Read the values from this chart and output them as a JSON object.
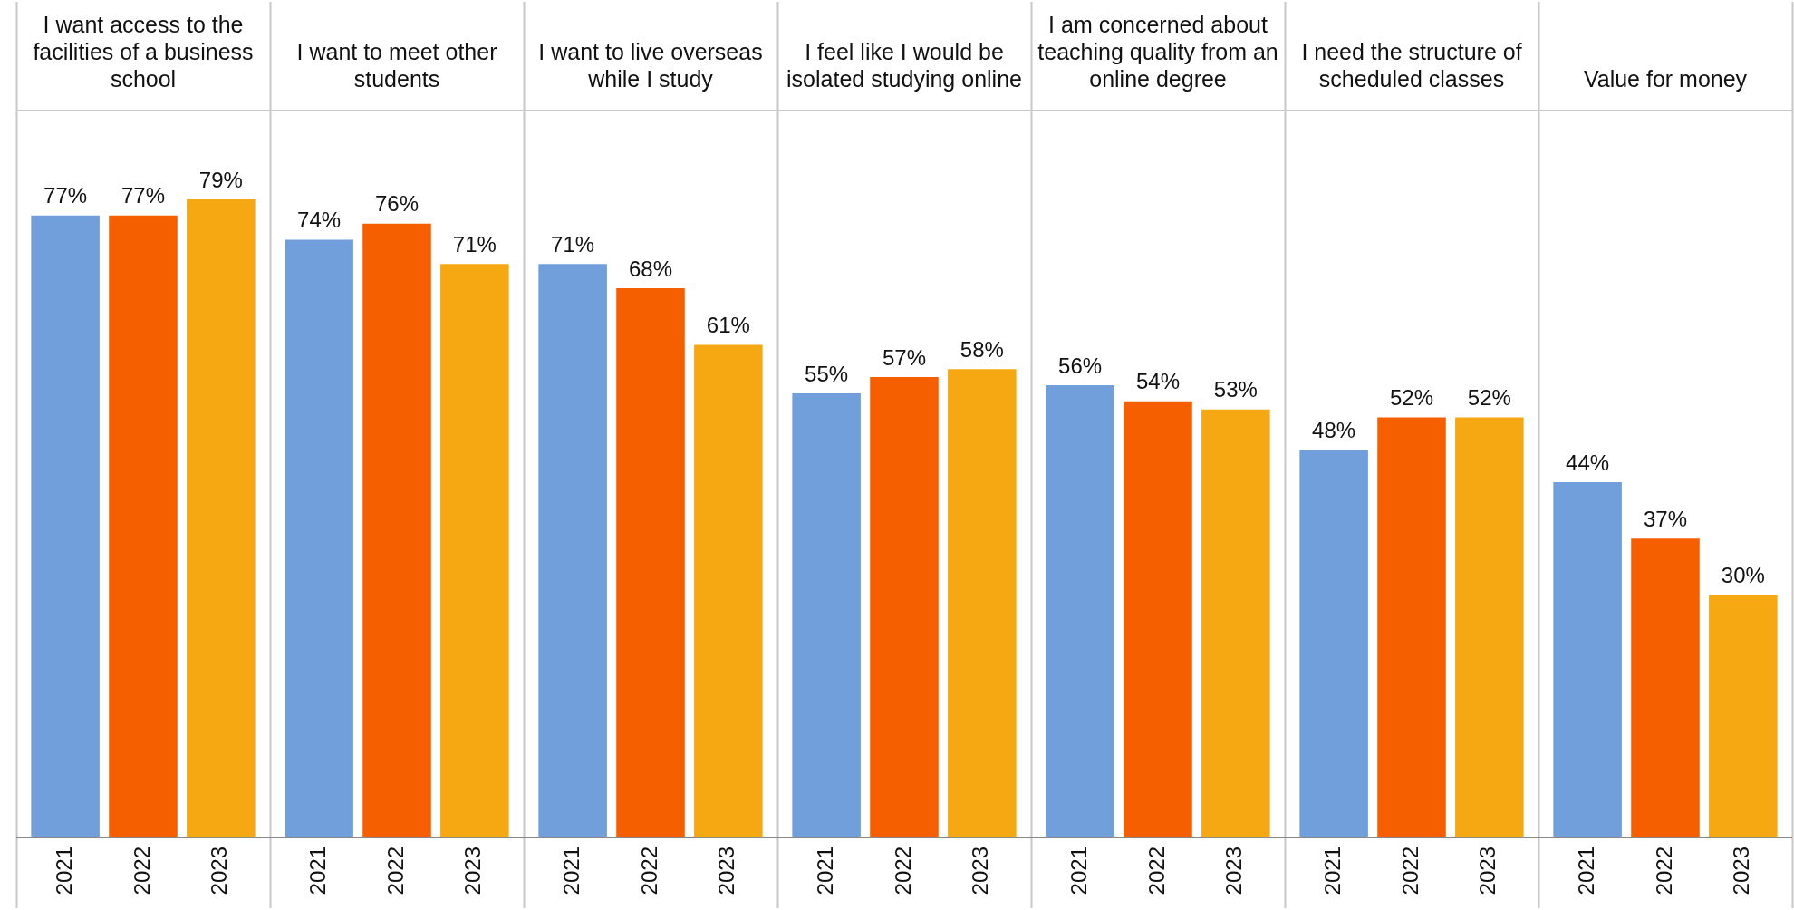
{
  "chart_data": {
    "type": "bar",
    "categories": [
      "I want access to the facilities of a business school",
      "I want to meet other students",
      "I want to live overseas while I study",
      "I feel like I would be isolated studying online",
      "I am concerned about teaching quality from an online degree",
      "I need the structure of scheduled classes",
      "Value for money"
    ],
    "series": [
      {
        "name": "2021",
        "color": "#719fdb",
        "values": [
          77,
          74,
          71,
          55,
          56,
          48,
          44
        ],
        "value_labels": [
          "77%",
          "74%",
          "71%",
          "55%",
          "56%",
          "48%",
          "44%"
        ]
      },
      {
        "name": "2022",
        "color": "#f55f00",
        "values": [
          77,
          76,
          68,
          57,
          54,
          52,
          37
        ],
        "value_labels": [
          "77%",
          "76%",
          "68%",
          "57%",
          "54%",
          "52%",
          "37%"
        ]
      },
      {
        "name": "2023",
        "color": "#f5a812",
        "values": [
          79,
          71,
          61,
          58,
          53,
          52,
          30
        ],
        "value_labels": [
          "79%",
          "71%",
          "61%",
          "58%",
          "53%",
          "52%",
          "30%"
        ]
      }
    ],
    "legend": false,
    "grid": false,
    "tick_labels": "x"
  }
}
